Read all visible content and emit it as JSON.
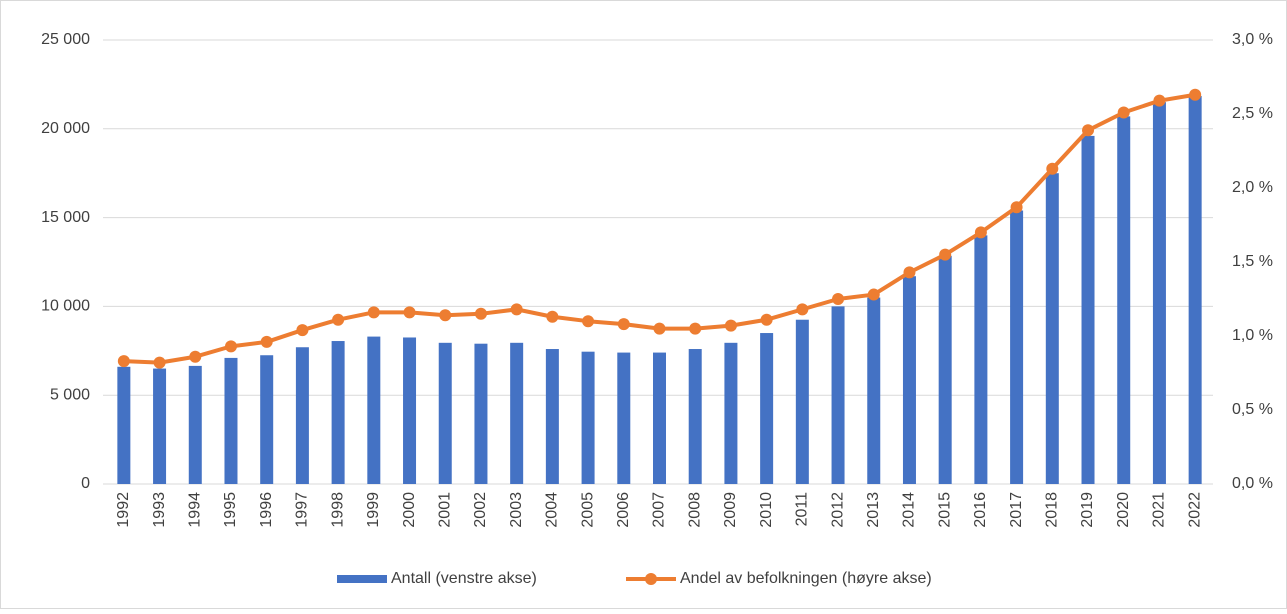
{
  "chart_data": {
    "type": "bar-line",
    "categories": [
      "1992",
      "1993",
      "1994",
      "1995",
      "1996",
      "1997",
      "1998",
      "1999",
      "2000",
      "2001",
      "2002",
      "2003",
      "2004",
      "2005",
      "2006",
      "2007",
      "2008",
      "2009",
      "2010",
      "2011",
      "2012",
      "2013",
      "2014",
      "2015",
      "2016",
      "2017",
      "2018",
      "2019",
      "2020",
      "2021",
      "2022"
    ],
    "series": [
      {
        "name": "Antall (venstre akse)",
        "type": "bar",
        "color": "#4472c4",
        "values": [
          6600,
          6500,
          6650,
          7100,
          7250,
          7700,
          8050,
          8300,
          8250,
          7950,
          7900,
          7950,
          7600,
          7450,
          7400,
          7400,
          7600,
          7950,
          8500,
          9250,
          10000,
          10500,
          11700,
          12850,
          14000,
          15400,
          17500,
          19600,
          20700,
          21500,
          21850
        ]
      },
      {
        "name": "Andel av befolkningen (høyre akse)",
        "type": "line",
        "axis": "y2",
        "color": "#ed7d31",
        "values": [
          0.83,
          0.82,
          0.86,
          0.93,
          0.96,
          1.04,
          1.11,
          1.16,
          1.16,
          1.14,
          1.15,
          1.18,
          1.13,
          1.1,
          1.08,
          1.05,
          1.05,
          1.07,
          1.11,
          1.18,
          1.25,
          1.28,
          1.43,
          1.55,
          1.7,
          1.87,
          2.13,
          2.39,
          2.51,
          2.59,
          2.63
        ]
      }
    ],
    "ylim": [
      0,
      25000
    ],
    "yticks": [
      0,
      {
        "value": 5000,
        "label": "5 000"
      },
      {
        "value": 10000,
        "label": "10 000"
      },
      {
        "value": 15000,
        "label": "15 000"
      },
      {
        "value": 20000,
        "label": "20 000"
      },
      {
        "value": 25000,
        "label": "25 000"
      }
    ],
    "y2lim": [
      0,
      3.0
    ],
    "y2ticks": [
      {
        "value": 0,
        "label": "0,0 %"
      },
      {
        "value": 0.5,
        "label": "0,5 %"
      },
      {
        "value": 1.0,
        "label": "1,0 %"
      },
      {
        "value": 1.5,
        "label": "1,5 %"
      },
      {
        "value": 2.0,
        "label": "2,0 %"
      },
      {
        "value": 2.5,
        "label": "2,5 %"
      },
      {
        "value": 3.0,
        "label": "3,0 %"
      }
    ],
    "grid": true,
    "legend": "bottom"
  }
}
